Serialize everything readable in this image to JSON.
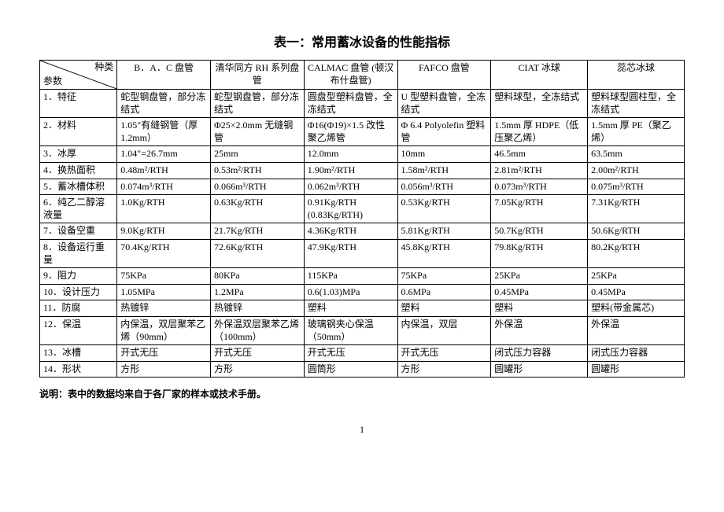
{
  "title": "表一：常用蓄冰设备的性能指标",
  "header": {
    "diag_top": "种类",
    "diag_bottom": "参数",
    "cols": [
      "B．A．C 盘管",
      "清华同方 RH 系列盘管",
      "CALMAC 盘管 (顿汉布什盘管)",
      "FAFCO 盘管",
      "CIAT 冰球",
      "蕊芯冰球"
    ]
  },
  "rows": [
    {
      "label": "1．特征",
      "cells": [
        "蛇型钢盘管，部分冻结式",
        "蛇型钢盘管，部分冻结式",
        "圆盘型塑料盘管，全冻结式",
        "U 型塑料盘管，全冻结式",
        "塑料球型，全冻结式",
        "塑料球型圆柱型，全冻结式"
      ]
    },
    {
      "label": "2．材料",
      "cells": [
        "1.05″有缝钢管（厚 1.2mm）",
        "Φ25×2.0mm 无缝钢管",
        "Φ16(Φ19)×1.5 改性聚乙烯管",
        "Φ 6.4 Polyolefin 塑料管",
        "1.5mm 厚 HDPE（低压聚乙烯）",
        "1.5mm 厚 PE（聚乙烯）"
      ]
    },
    {
      "label": "3．冰厚",
      "cells": [
        "1.04″=26.7mm",
        "25mm",
        "12.0mm",
        "10mm",
        "46.5mm",
        "63.5mm"
      ]
    },
    {
      "label": "4．换热面积",
      "cells": [
        "0.48m²/RTH",
        "0.53m²/RTH",
        "1.90m²/RTH",
        "1.58m²/RTH",
        "2.81m²/RTH",
        "2.00m²/RTH"
      ]
    },
    {
      "label": "5．蓄冰槽体积",
      "cells": [
        "0.074m³/RTH",
        "0.066m³/RTH",
        "0.062m³/RTH",
        "0.056m³/RTH",
        "0.073m³/RTH",
        "0.075m³/RTH"
      ]
    },
    {
      "label": "6．纯乙二醇溶液量",
      "cells": [
        "1.0Kg/RTH",
        "0.63Kg/RTH",
        "0.91Kg/RTH (0.83Kg/RTH)",
        "0.53Kg/RTH",
        "7.05Kg/RTH",
        "7.31Kg/RTH"
      ]
    },
    {
      "label": "7．设备空重",
      "cells": [
        "9.0Kg/RTH",
        "21.7Kg/RTH",
        "4.36Kg/RTH",
        "5.81Kg/RTH",
        "50.7Kg/RTH",
        "50.6Kg/RTH"
      ]
    },
    {
      "label": "8．设备运行重量",
      "cells": [
        "70.4Kg/RTH",
        "72.6Kg/RTH",
        "47.9Kg/RTH",
        "45.8Kg/RTH",
        "79.8Kg/RTH",
        "80.2Kg/RTH"
      ]
    },
    {
      "label": "9．阻力",
      "cells": [
        "75KPa",
        "80KPa",
        "115KPa",
        "75KPa",
        "25KPa",
        "25KPa"
      ]
    },
    {
      "label": "10．设计压力",
      "cells": [
        "1.05MPa",
        "1.2MPa",
        "0.6(1.03)MPa",
        "0.6MPa",
        "0.45MPa",
        "0.45MPa"
      ]
    },
    {
      "label": "11．防腐",
      "cells": [
        "热镀锌",
        "热镀锌",
        "塑料",
        "塑料",
        "塑料",
        "塑料(带金属芯)"
      ]
    },
    {
      "label": "12．保温",
      "cells": [
        "内保温，双层聚苯乙烯（90mm）",
        "外保温双层聚苯乙烯（100mm）",
        "玻璃钢夹心保温（50mm）",
        "内保温，双层",
        "外保温",
        "外保温"
      ]
    },
    {
      "label": "13．冰槽",
      "cells": [
        "开式无压",
        "开式无压",
        "开式无压",
        "开式无压",
        "闭式压力容器",
        "闭式压力容器"
      ]
    },
    {
      "label": "14．形状",
      "cells": [
        "方形",
        "方形",
        "圆筒形",
        "方形",
        "圆罐形",
        "圆罐形"
      ]
    }
  ],
  "note": "说明：表中的数据均来自于各厂家的样本或技术手册。",
  "page_num": "1",
  "style": {
    "background_color": "#ffffff",
    "text_color": "#000000",
    "border_color": "#000000",
    "title_fontsize": 16,
    "cell_fontsize": 12,
    "font_family": "SimSun"
  }
}
